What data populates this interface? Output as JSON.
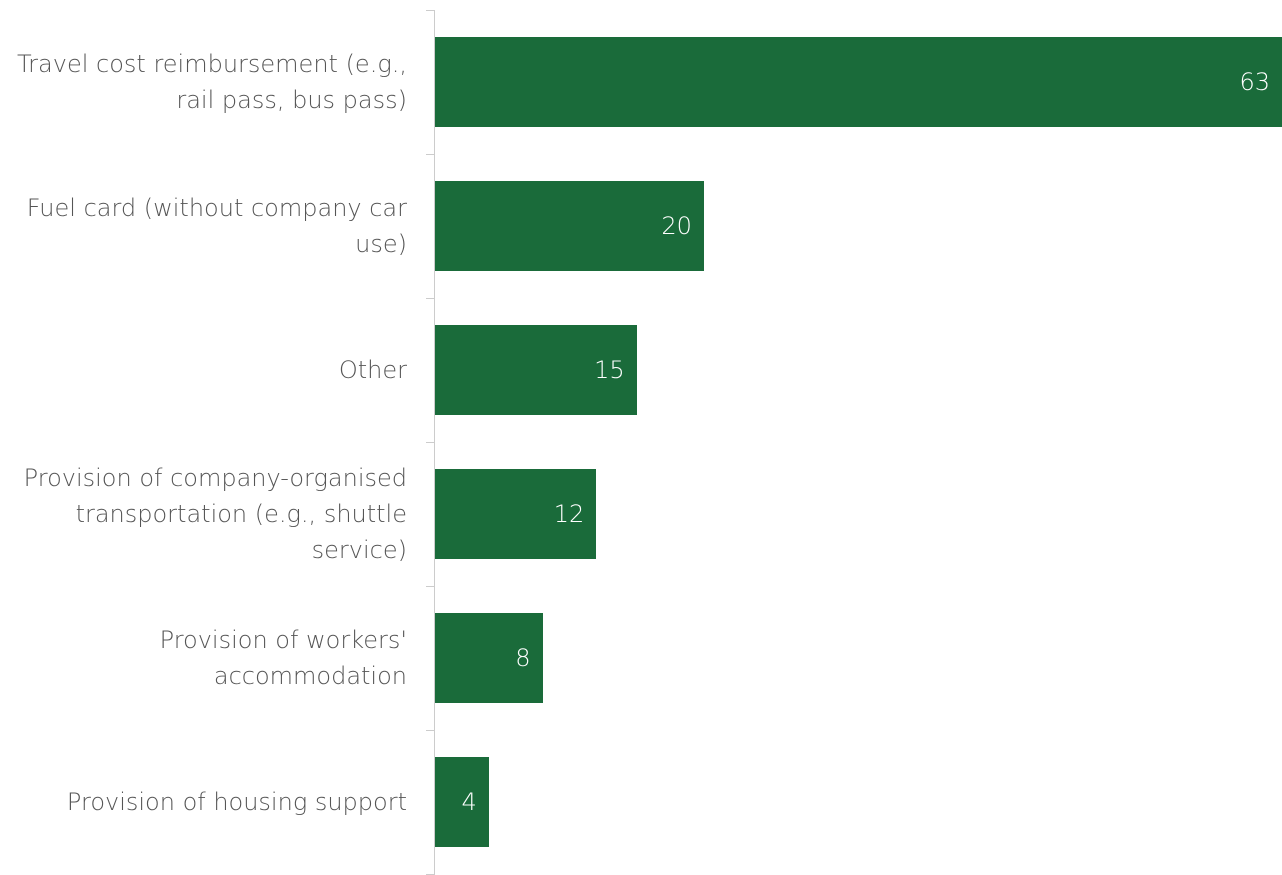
{
  "chart_data": {
    "type": "bar",
    "orientation": "horizontal",
    "categories": [
      "Travel cost reimbursement (e.g., rail pass, bus pass)",
      "Fuel card (without company car use)",
      "Other",
      "Provision of company-organised transportation (e.g., shuttle service)",
      "Provision of workers' accommodation",
      "Provision of housing support"
    ],
    "values": [
      63,
      20,
      15,
      12,
      8,
      4
    ],
    "color": "#1a6b3a"
  }
}
